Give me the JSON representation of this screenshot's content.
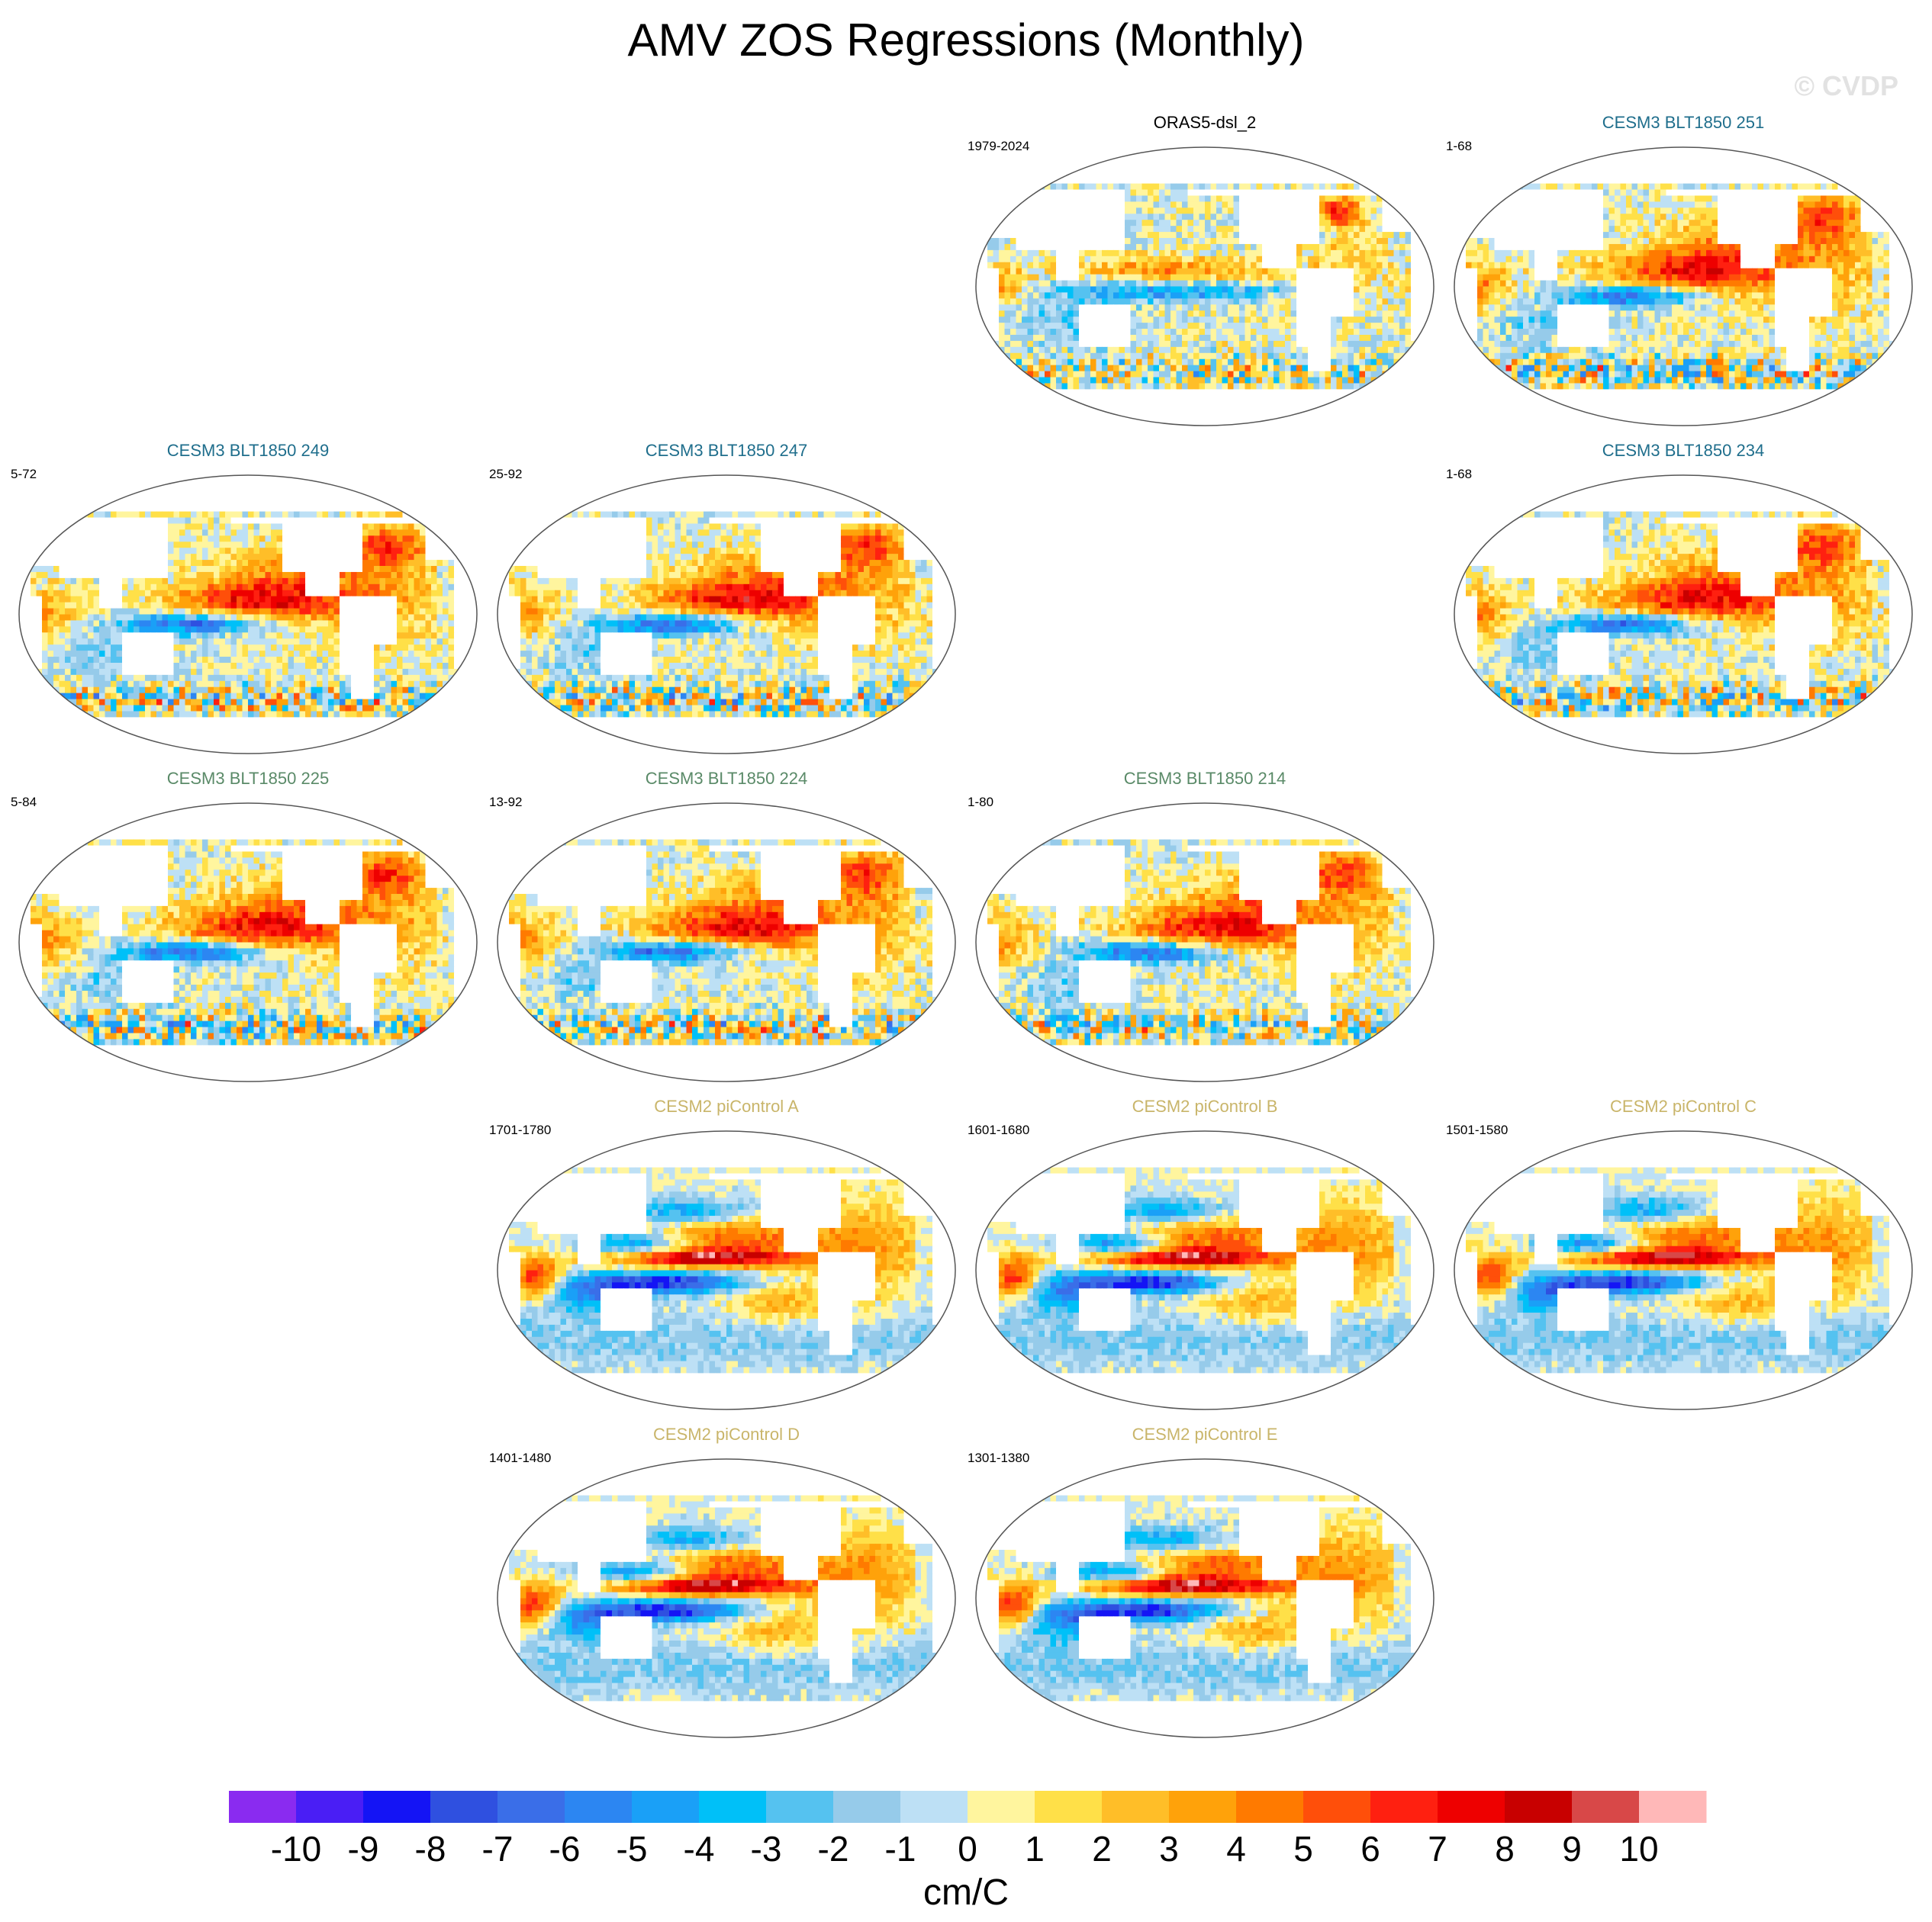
{
  "title": "AMV ZOS Regressions (Monthly)",
  "watermark": "© CVDP",
  "chart_data": {
    "type": "heatmap",
    "title": "AMV ZOS Regressions (Monthly)",
    "projection": "Robinson world map, Pacific-centered",
    "units": "cm/C",
    "colorbar": {
      "levels": [
        -10,
        -9,
        -8,
        -7,
        -6,
        -5,
        -4,
        -3,
        -2,
        -1,
        0,
        1,
        2,
        3,
        4,
        5,
        6,
        7,
        8,
        9,
        10
      ],
      "labels": [
        "-10",
        "-9",
        "-8",
        "-7",
        "-6",
        "-5",
        "-4",
        "-3",
        "-2",
        "-1",
        "0",
        "1",
        "2",
        "3",
        "4",
        "5",
        "6",
        "7",
        "8",
        "9",
        "10"
      ],
      "colors": [
        "#8a2bf0",
        "#4a1ef5",
        "#1414f5",
        "#2f50e0",
        "#3a6ee8",
        "#2c86f2",
        "#1aa0f7",
        "#00c0f8",
        "#55c2f0",
        "#96cbea",
        "#bde0f5",
        "#fff59e",
        "#ffe048",
        "#ffbe28",
        "#ffa20a",
        "#ff7a00",
        "#ff4f0a",
        "#ff2010",
        "#ee0000",
        "#c80000",
        "#d84848",
        "#ffb8b8"
      ]
    },
    "panels": [
      {
        "name": "ORAS5-dsl_2",
        "period": "1979-2024",
        "row": 0,
        "col": 2,
        "title_color": "#000000",
        "style": "obs"
      },
      {
        "name": "CESM3 BLT1850 251",
        "period": "1-68",
        "row": 0,
        "col": 3,
        "title_color": "#1f6e8c",
        "style": "cesm3"
      },
      {
        "name": "CESM3 BLT1850 249",
        "period": "5-72",
        "row": 1,
        "col": 0,
        "title_color": "#1f6e8c",
        "style": "cesm3"
      },
      {
        "name": "CESM3 BLT1850 247",
        "period": "25-92",
        "row": 1,
        "col": 1,
        "title_color": "#1f6e8c",
        "style": "cesm3"
      },
      {
        "name": "CESM3 BLT1850 234",
        "period": "1-68",
        "row": 1,
        "col": 3,
        "title_color": "#1f6e8c",
        "style": "cesm3"
      },
      {
        "name": "CESM3 BLT1850 225",
        "period": "5-84",
        "row": 2,
        "col": 0,
        "title_color": "#5a8a68",
        "style": "cesm3"
      },
      {
        "name": "CESM3 BLT1850 224",
        "period": "13-92",
        "row": 2,
        "col": 1,
        "title_color": "#5a8a68",
        "style": "cesm3"
      },
      {
        "name": "CESM3 BLT1850 214",
        "period": "1-80",
        "row": 2,
        "col": 2,
        "title_color": "#5a8a68",
        "style": "cesm3"
      },
      {
        "name": "CESM2 piControl A",
        "period": "1701-1780",
        "row": 3,
        "col": 1,
        "title_color": "#c9b56a",
        "style": "cesm2"
      },
      {
        "name": "CESM2 piControl B",
        "period": "1601-1680",
        "row": 3,
        "col": 2,
        "title_color": "#c9b56a",
        "style": "cesm2"
      },
      {
        "name": "CESM2 piControl C",
        "period": "1501-1580",
        "row": 3,
        "col": 3,
        "title_color": "#c9b56a",
        "style": "cesm2"
      },
      {
        "name": "CESM2 piControl D",
        "period": "1401-1480",
        "row": 4,
        "col": 1,
        "title_color": "#c9b56a",
        "style": "cesm2"
      },
      {
        "name": "CESM2 piControl E",
        "period": "1301-1380",
        "row": 4,
        "col": 2,
        "title_color": "#c9b56a",
        "style": "cesm2"
      }
    ]
  }
}
